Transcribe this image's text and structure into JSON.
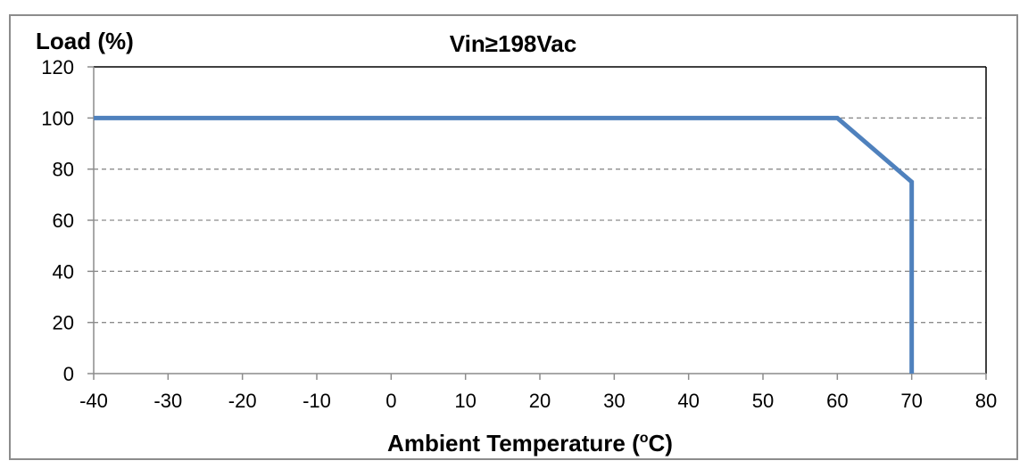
{
  "chart_data": {
    "type": "line",
    "title": "Vin≥198Vac",
    "ylabel": "Load (%)",
    "xlabel": "Ambient Temperature (",
    "xlabel_sup": "o",
    "xlabel_tail": "C)",
    "xlim": [
      -40,
      80
    ],
    "ylim": [
      0,
      120
    ],
    "xticks": [
      -40,
      -30,
      -20,
      -10,
      0,
      10,
      20,
      30,
      40,
      50,
      60,
      70,
      80
    ],
    "yticks": [
      0,
      20,
      40,
      60,
      80,
      100,
      120
    ],
    "grid": "horizontal dashed",
    "series": [
      {
        "color": "#4f81bd",
        "x": [
          -40,
          60,
          70,
          70
        ],
        "y": [
          100,
          100,
          75,
          0
        ]
      }
    ]
  }
}
